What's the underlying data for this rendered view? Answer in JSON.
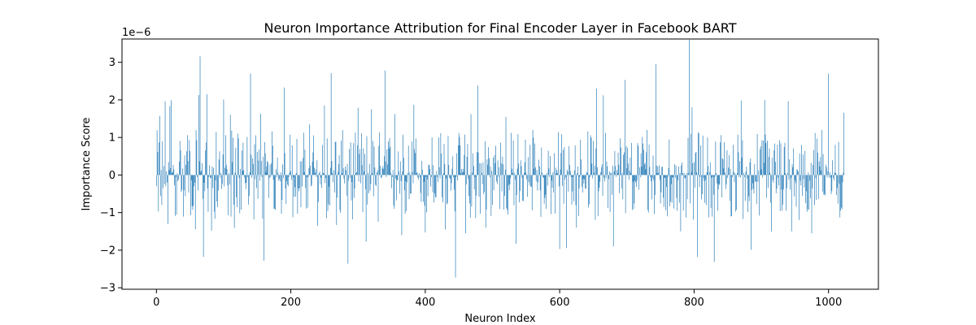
{
  "chart_data": {
    "type": "bar",
    "title": "Neuron Importance Attribution for Final Encoder Layer in Facebook BART",
    "xlabel": "Neuron Index",
    "ylabel": "Importance Score",
    "y_offset_label": "1e−6",
    "xlim": [
      -51.2,
      1074.2
    ],
    "ylim": [
      -3.04,
      3.62
    ],
    "x_ticks": [
      0,
      200,
      400,
      600,
      800,
      1000
    ],
    "y_ticks": [
      -3,
      -2,
      -1,
      0,
      1,
      2,
      3
    ],
    "grid": false,
    "series_color": "#1f77b4",
    "n_neurons": 1024,
    "notable_values": [
      {
        "x": 0,
        "y": -0.3
      },
      {
        "x": 5,
        "y": 1.57
      },
      {
        "x": 6,
        "y": -0.56
      },
      {
        "x": 13,
        "y": 1.96
      },
      {
        "x": 17,
        "y": -1.3
      },
      {
        "x": 20,
        "y": 1.83
      },
      {
        "x": 22,
        "y": 1.99
      },
      {
        "x": 30,
        "y": -1.05
      },
      {
        "x": 46,
        "y": 1.06
      },
      {
        "x": 58,
        "y": -1.44
      },
      {
        "x": 63,
        "y": 2.13
      },
      {
        "x": 65,
        "y": 3.16
      },
      {
        "x": 70,
        "y": -2.18
      },
      {
        "x": 75,
        "y": 2.15
      },
      {
        "x": 82,
        "y": -1.48
      },
      {
        "x": 100,
        "y": 2.01
      },
      {
        "x": 110,
        "y": 1.6
      },
      {
        "x": 116,
        "y": -1.41
      },
      {
        "x": 140,
        "y": 2.7
      },
      {
        "x": 155,
        "y": 1.63
      },
      {
        "x": 160,
        "y": -2.28
      },
      {
        "x": 175,
        "y": -0.9
      },
      {
        "x": 190,
        "y": 2.33
      },
      {
        "x": 210,
        "y": -1.03
      },
      {
        "x": 228,
        "y": 1.35
      },
      {
        "x": 240,
        "y": -1.35
      },
      {
        "x": 250,
        "y": 1.85
      },
      {
        "x": 260,
        "y": 2.71
      },
      {
        "x": 268,
        "y": -1.33
      },
      {
        "x": 285,
        "y": -2.36
      },
      {
        "x": 300,
        "y": 1.79
      },
      {
        "x": 312,
        "y": -1.77
      },
      {
        "x": 320,
        "y": 1.75
      },
      {
        "x": 330,
        "y": -1.24
      },
      {
        "x": 340,
        "y": 2.78
      },
      {
        "x": 355,
        "y": 1.62
      },
      {
        "x": 365,
        "y": -1.6
      },
      {
        "x": 383,
        "y": 1.87
      },
      {
        "x": 400,
        "y": -1.53
      },
      {
        "x": 420,
        "y": 1.0
      },
      {
        "x": 430,
        "y": -1.45
      },
      {
        "x": 445,
        "y": -2.73
      },
      {
        "x": 460,
        "y": -1.55
      },
      {
        "x": 468,
        "y": 1.62
      },
      {
        "x": 478,
        "y": 2.38
      },
      {
        "x": 490,
        "y": -1.4
      },
      {
        "x": 520,
        "y": 1.55
      },
      {
        "x": 535,
        "y": -1.83
      },
      {
        "x": 560,
        "y": 1.2
      },
      {
        "x": 580,
        "y": -0.9
      },
      {
        "x": 600,
        "y": -1.97
      },
      {
        "x": 610,
        "y": -1.94
      },
      {
        "x": 625,
        "y": -1.4
      },
      {
        "x": 655,
        "y": 2.3
      },
      {
        "x": 665,
        "y": 2.12
      },
      {
        "x": 680,
        "y": -1.9
      },
      {
        "x": 697,
        "y": 2.53
      },
      {
        "x": 710,
        "y": -0.9
      },
      {
        "x": 730,
        "y": 1.2
      },
      {
        "x": 743,
        "y": 2.95
      },
      {
        "x": 760,
        "y": -1.1
      },
      {
        "x": 780,
        "y": -1.5
      },
      {
        "x": 793,
        "y": 3.6
      },
      {
        "x": 797,
        "y": 1.8
      },
      {
        "x": 805,
        "y": -2.18
      },
      {
        "x": 820,
        "y": 1.0
      },
      {
        "x": 830,
        "y": -2.31
      },
      {
        "x": 855,
        "y": -1.1
      },
      {
        "x": 870,
        "y": 1.98
      },
      {
        "x": 885,
        "y": -1.99
      },
      {
        "x": 905,
        "y": 2.0
      },
      {
        "x": 915,
        "y": -1.5
      },
      {
        "x": 940,
        "y": 1.96
      },
      {
        "x": 945,
        "y": -1.5
      },
      {
        "x": 960,
        "y": 0.8
      },
      {
        "x": 975,
        "y": -1.55
      },
      {
        "x": 990,
        "y": 1.2
      },
      {
        "x": 1000,
        "y": 2.7
      },
      {
        "x": 1010,
        "y": 0.8
      },
      {
        "x": 1017,
        "y": -1.13
      },
      {
        "x": 1023,
        "y": 1.66
      }
    ]
  }
}
